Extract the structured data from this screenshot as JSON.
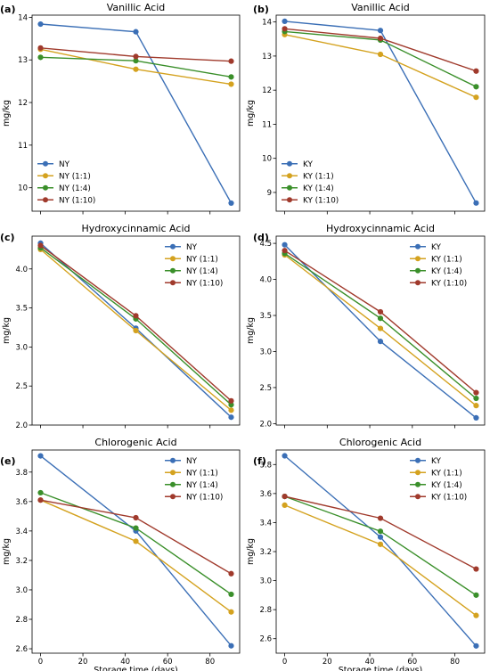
{
  "chart_data": [
    {
      "panel": "(a)",
      "type": "line",
      "title": "Vanillic Acid",
      "ylabel": "mg/kg",
      "xlabel": "",
      "x": [
        0,
        45,
        90
      ],
      "xlim": [
        -4,
        94
      ],
      "xticks": [
        0,
        20,
        40,
        60,
        80
      ],
      "ylim": [
        9.45,
        14.05
      ],
      "yticks": [
        10,
        11,
        12,
        13,
        14
      ],
      "legend": "bottom-left",
      "series": [
        {
          "name": "NY",
          "color": "#3b6fb6",
          "values": [
            13.84,
            13.66,
            9.64
          ]
        },
        {
          "name": "NY (1:1)",
          "color": "#d4a21f",
          "values": [
            13.25,
            12.78,
            12.43
          ]
        },
        {
          "name": "NY (1:4)",
          "color": "#3a8f2a",
          "values": [
            13.06,
            12.98,
            12.6
          ]
        },
        {
          "name": "NY (1:10)",
          "color": "#a03a2c",
          "values": [
            13.28,
            13.08,
            12.97
          ]
        }
      ]
    },
    {
      "panel": "(b)",
      "type": "line",
      "title": "Vanillic Acid",
      "ylabel": "mg/kg",
      "xlabel": "",
      "x": [
        0,
        45,
        90
      ],
      "xlim": [
        -4,
        94
      ],
      "xticks": [
        0,
        20,
        40,
        60,
        80
      ],
      "ylim": [
        8.45,
        14.2
      ],
      "yticks": [
        9,
        10,
        11,
        12,
        13,
        14
      ],
      "legend": "bottom-left",
      "series": [
        {
          "name": "KY",
          "color": "#3b6fb6",
          "values": [
            14.02,
            13.75,
            8.69
          ]
        },
        {
          "name": "KY (1:1)",
          "color": "#d4a21f",
          "values": [
            13.63,
            13.05,
            11.79
          ]
        },
        {
          "name": "KY (1:4)",
          "color": "#3a8f2a",
          "values": [
            13.72,
            13.47,
            12.1
          ]
        },
        {
          "name": "KY (1:10)",
          "color": "#a03a2c",
          "values": [
            13.8,
            13.52,
            12.56
          ]
        }
      ]
    },
    {
      "panel": "(c)",
      "type": "line",
      "title": "Hydroxycinnamic Acid",
      "ylabel": "mg/kg",
      "xlabel": "",
      "x": [
        0,
        45,
        90
      ],
      "xlim": [
        -4,
        94
      ],
      "xticks": [
        0,
        20,
        40,
        60,
        80
      ],
      "ylim": [
        2.0,
        4.42
      ],
      "yticks": [
        2.0,
        2.5,
        3.0,
        3.5,
        4.0
      ],
      "legend": "top-right",
      "series": [
        {
          "name": "NY",
          "color": "#3b6fb6",
          "values": [
            4.33,
            3.24,
            2.1
          ]
        },
        {
          "name": "NY (1:1)",
          "color": "#d4a21f",
          "values": [
            4.25,
            3.21,
            2.19
          ]
        },
        {
          "name": "NY (1:4)",
          "color": "#3a8f2a",
          "values": [
            4.27,
            3.36,
            2.26
          ]
        },
        {
          "name": "NY (1:10)",
          "color": "#a03a2c",
          "values": [
            4.3,
            3.4,
            2.31
          ]
        }
      ]
    },
    {
      "panel": "(d)",
      "type": "line",
      "title": "Hydroxycinnamic Acid",
      "ylabel": "mg/kg",
      "xlabel": "",
      "x": [
        0,
        45,
        90
      ],
      "xlim": [
        -4,
        94
      ],
      "xticks": [
        0,
        20,
        40,
        60,
        80
      ],
      "ylim": [
        1.98,
        4.6
      ],
      "yticks": [
        2.0,
        2.5,
        3.0,
        3.5,
        4.0,
        4.5
      ],
      "legend": "top-right",
      "series": [
        {
          "name": "KY",
          "color": "#3b6fb6",
          "values": [
            4.48,
            3.14,
            2.08
          ]
        },
        {
          "name": "KY (1:1)",
          "color": "#d4a21f",
          "values": [
            4.34,
            3.32,
            2.25
          ]
        },
        {
          "name": "KY (1:4)",
          "color": "#3a8f2a",
          "values": [
            4.36,
            3.46,
            2.35
          ]
        },
        {
          "name": "KY (1:10)",
          "color": "#a03a2c",
          "values": [
            4.4,
            3.55,
            2.43
          ]
        }
      ]
    },
    {
      "panel": "(e)",
      "type": "line",
      "title": "Chlorogenic Acid",
      "ylabel": "mg/kg",
      "xlabel": "Storage time (days)",
      "x": [
        0,
        45,
        90
      ],
      "xlim": [
        -4,
        94
      ],
      "xticks": [
        0,
        20,
        40,
        60,
        80
      ],
      "ylim": [
        2.57,
        3.95
      ],
      "yticks": [
        2.6,
        2.8,
        3.0,
        3.2,
        3.4,
        3.6,
        3.8
      ],
      "legend": "top-right",
      "series": [
        {
          "name": "NY",
          "color": "#3b6fb6",
          "values": [
            3.91,
            3.4,
            2.62
          ]
        },
        {
          "name": "NY (1:1)",
          "color": "#d4a21f",
          "values": [
            3.61,
            3.33,
            2.85
          ]
        },
        {
          "name": "NY (1:4)",
          "color": "#3a8f2a",
          "values": [
            3.66,
            3.42,
            2.97
          ]
        },
        {
          "name": "NY (1:10)",
          "color": "#a03a2c",
          "values": [
            3.61,
            3.49,
            3.11
          ]
        }
      ]
    },
    {
      "panel": "(f)",
      "type": "line",
      "title": "Chlorogenic Acid",
      "ylabel": "mg/kg",
      "xlabel": "Storage time (days)",
      "x": [
        0,
        45,
        90
      ],
      "xlim": [
        -4,
        94
      ],
      "xticks": [
        0,
        20,
        40,
        60,
        80
      ],
      "ylim": [
        2.5,
        3.9
      ],
      "yticks": [
        2.6,
        2.8,
        3.0,
        3.2,
        3.4,
        3.6,
        3.8
      ],
      "legend": "top-right",
      "series": [
        {
          "name": "KY",
          "color": "#3b6fb6",
          "values": [
            3.86,
            3.3,
            2.55
          ]
        },
        {
          "name": "KY (1:1)",
          "color": "#d4a21f",
          "values": [
            3.52,
            3.25,
            2.76
          ]
        },
        {
          "name": "KY (1:4)",
          "color": "#3a8f2a",
          "values": [
            3.58,
            3.34,
            2.9
          ]
        },
        {
          "name": "KY (1:10)",
          "color": "#a03a2c",
          "values": [
            3.58,
            3.43,
            3.08
          ]
        }
      ]
    }
  ]
}
